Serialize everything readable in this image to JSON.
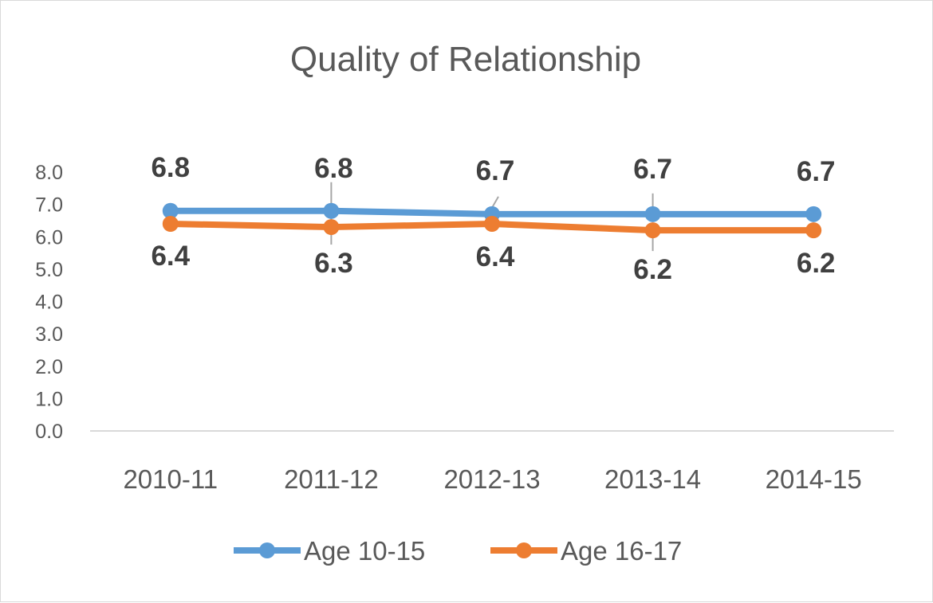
{
  "chart_data": {
    "type": "line",
    "title": "Quality of Relationship",
    "categories": [
      "2010-11",
      "2011-12",
      "2012-13",
      "2013-14",
      "2014-15"
    ],
    "series": [
      {
        "name": "Age 10-15",
        "values": [
          6.8,
          6.8,
          6.7,
          6.7,
          6.7
        ],
        "labels": [
          "6.8",
          "6.8",
          "6.7",
          "6.7",
          "6.7"
        ],
        "color": "#5B9BD5"
      },
      {
        "name": "Age 16-17",
        "values": [
          6.4,
          6.3,
          6.4,
          6.2,
          6.2
        ],
        "labels": [
          "6.4",
          "6.3",
          "6.4",
          "6.2",
          "6.2"
        ],
        "color": "#ED7D31"
      }
    ],
    "yticks": [
      "0.0",
      "1.0",
      "2.0",
      "3.0",
      "4.0",
      "5.0",
      "6.0",
      "7.0",
      "8.0"
    ],
    "ylim": [
      0,
      8
    ],
    "xlabel": "",
    "ylabel": "",
    "grid": false,
    "legend": "bottom",
    "axis_color": "#D9D9D9",
    "leader_line_color": "#A6A6A6"
  }
}
